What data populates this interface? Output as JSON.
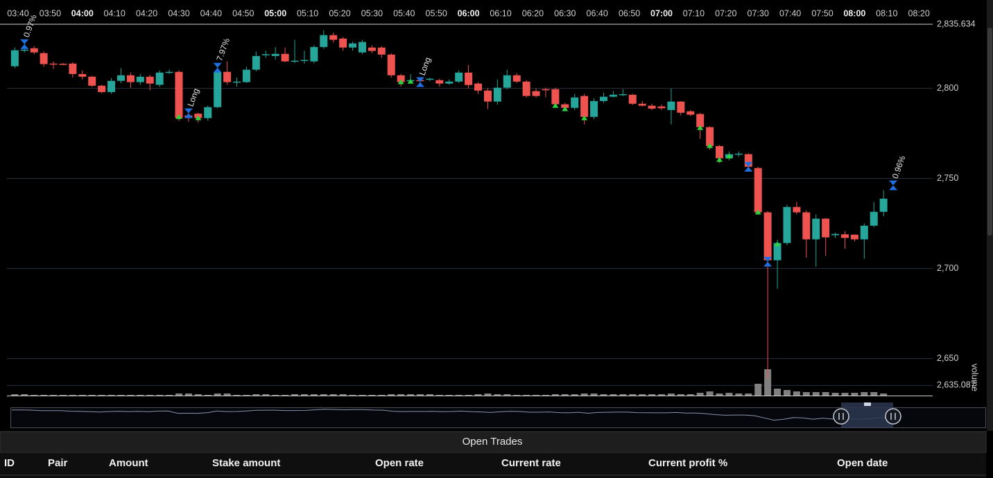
{
  "chart_data": {
    "type": "candlestick",
    "xticks": [
      "03:40",
      "03:50",
      "04:00",
      "04:10",
      "04:20",
      "04:30",
      "04:40",
      "04:50",
      "05:00",
      "05:10",
      "05:20",
      "05:30",
      "05:40",
      "05:50",
      "06:00",
      "06:10",
      "06:20",
      "06:30",
      "06:40",
      "06:50",
      "07:00",
      "07:10",
      "07:20",
      "07:30",
      "07:40",
      "07:50",
      "08:00",
      "08:10",
      "08:20"
    ],
    "x": [
      "03:39",
      "03:42",
      "03:45",
      "03:48",
      "03:51",
      "03:54",
      "03:57",
      "04:00",
      "04:03",
      "04:06",
      "04:09",
      "04:12",
      "04:15",
      "04:18",
      "04:21",
      "04:24",
      "04:27",
      "04:30",
      "04:33",
      "04:36",
      "04:39",
      "04:42",
      "04:45",
      "04:48",
      "04:51",
      "04:54",
      "04:57",
      "05:00",
      "05:03",
      "05:06",
      "05:09",
      "05:12",
      "05:15",
      "05:18",
      "05:21",
      "05:24",
      "05:27",
      "05:30",
      "05:33",
      "05:36",
      "05:39",
      "05:42",
      "05:45",
      "05:48",
      "05:51",
      "05:54",
      "05:57",
      "06:00",
      "06:03",
      "06:06",
      "06:09",
      "06:12",
      "06:15",
      "06:18",
      "06:21",
      "06:24",
      "06:27",
      "06:30",
      "06:33",
      "06:36",
      "06:39",
      "06:42",
      "06:45",
      "06:48",
      "06:51",
      "06:54",
      "06:57",
      "07:00",
      "07:03",
      "07:06",
      "07:09",
      "07:12",
      "07:15",
      "07:18",
      "07:21",
      "07:24",
      "07:27",
      "07:30",
      "07:33",
      "07:36",
      "07:39",
      "07:42",
      "07:45",
      "07:48",
      "07:51",
      "07:54",
      "07:57",
      "08:00",
      "08:03",
      "08:06",
      "08:09"
    ],
    "open": [
      2812.3,
      2821,
      2822.3,
      2819.6,
      2813.8,
      2813.7,
      2813.8,
      2808,
      2806.5,
      2801.5,
      2798,
      2804.2,
      2807.3,
      2803.5,
      2806.5,
      2802,
      2809,
      2809.2,
      2785,
      2786,
      2783.5,
      2789.6,
      2809.2,
      2803.5,
      2803.5,
      2810.4,
      2818.5,
      2818,
      2819.2,
      2815,
      2815.4,
      2815,
      2823,
      2829.6,
      2827.7,
      2822.7,
      2820,
      2822.7,
      2822.7,
      2818.8,
      2807.3,
      2804,
      2804.6,
      2805,
      2804.6,
      2802.7,
      2803.8,
      2808.8,
      2802.7,
      2798.8,
      2792.7,
      2800.4,
      2807.3,
      2803.8,
      2798.5,
      2799.6,
      2799.6,
      2791.2,
      2789.2,
      2795.8,
      2784.2,
      2793,
      2795.4,
      2796.5,
      2796.5,
      2791.5,
      2790.4,
      2790,
      2788,
      2792.7,
      2787.3,
      2785.8,
      2778.5,
      2768,
      2761.2,
      2763.5,
      2763.5,
      2755.8,
      2731.2,
      2704.6,
      2714.2,
      2734.2,
      2731.2,
      2716.2,
      2727.7,
      2718.5,
      2719,
      2718.8,
      2716.2,
      2723.8,
      2731.5
    ],
    "high": [
      2822.7,
      2825.8,
      2823.5,
      2820.5,
      2815,
      2814.2,
      2814.6,
      2810,
      2807,
      2802,
      2805.8,
      2811.2,
      2808.8,
      2808,
      2807.6,
      2810,
      2810.5,
      2810,
      2787,
      2786.5,
      2790.5,
      2812,
      2815,
      2806,
      2812,
      2820.5,
      2821,
      2823,
      2822.7,
      2827,
      2821,
      2824,
      2832.3,
      2831,
      2828.5,
      2826,
      2827,
      2824,
      2823.5,
      2819.5,
      2808,
      2808,
      2806,
      2806,
      2805.4,
      2805,
      2810,
      2813,
      2803.5,
      2800,
      2805,
      2810.4,
      2808.5,
      2804.6,
      2800,
      2800.4,
      2800.4,
      2792,
      2797,
      2797,
      2794.6,
      2797.7,
      2798.5,
      2799.6,
      2797,
      2793,
      2791.5,
      2791,
      2800,
      2793,
      2788,
      2786.5,
      2779,
      2768.5,
      2765,
      2765,
      2764,
      2756.5,
      2732,
      2716,
      2735.5,
      2737,
      2732.3,
      2730,
      2728,
      2720,
      2720.8,
      2719,
      2725,
      2737,
      2743.5
    ],
    "low": [
      2811.2,
      2820,
      2819,
      2812,
      2810.8,
      2813,
      2806,
      2805,
      2800.8,
      2797.3,
      2797,
      2803,
      2800.4,
      2802,
      2799,
      2800.8,
      2808,
      2782,
      2781.5,
      2781,
      2782,
      2789,
      2802,
      2801,
      2803,
      2809.5,
      2817,
      2816,
      2814.6,
      2814,
      2813.8,
      2814,
      2822,
      2825.4,
      2821,
      2821,
      2819,
      2819.6,
      2817,
      2806,
      2801,
      2803,
      2802,
      2804,
      2801,
      2802,
      2803,
      2800,
      2797,
      2788.5,
      2791,
      2799.6,
      2803,
      2795,
      2795,
      2795,
      2789.6,
      2788,
      2788,
      2780,
      2783,
      2792,
      2795,
      2795.8,
      2790.8,
      2790,
      2788,
      2788,
      2780,
      2785,
      2784.6,
      2772,
      2766,
      2758.5,
      2760,
      2762,
      2754,
      2730,
      2638.8,
      2688.8,
      2713,
      2730,
      2706,
      2701,
      2707,
      2717,
      2711,
      2715,
      2705.4,
      2723,
      2729
    ],
    "close": [
      2821.2,
      2821.5,
      2820,
      2813.5,
      2813.5,
      2813.5,
      2808,
      2806.5,
      2801.5,
      2798,
      2804.2,
      2807.3,
      2803.5,
      2806.5,
      2802.7,
      2808.8,
      2809.2,
      2783.5,
      2784,
      2783.5,
      2789.6,
      2809.2,
      2803.5,
      2803.8,
      2810.4,
      2818,
      2819,
      2819.2,
      2815,
      2815.4,
      2815.8,
      2823,
      2829.6,
      2827,
      2822.7,
      2825,
      2825.8,
      2820.8,
      2818.8,
      2807.3,
      2803.5,
      2804.6,
      2804.2,
      2805.4,
      2802.7,
      2803.8,
      2808.8,
      2801.9,
      2798.8,
      2792.7,
      2800.4,
      2807.3,
      2803.8,
      2795.8,
      2795.8,
      2799,
      2791.2,
      2789.2,
      2795,
      2784.2,
      2793,
      2795.4,
      2796.5,
      2796.8,
      2791.5,
      2790.4,
      2788.8,
      2789,
      2792.7,
      2786.5,
      2785.4,
      2778.5,
      2768,
      2761.2,
      2763.5,
      2763.8,
      2756.5,
      2731.2,
      2704.6,
      2714.2,
      2734.2,
      2731.2,
      2716.2,
      2727.7,
      2717.3,
      2719.2,
      2717,
      2716.2,
      2723.8,
      2731.5,
      2738.8
    ],
    "volume": [
      2,
      2,
      1,
      1,
      1,
      1,
      1,
      1,
      1,
      1,
      1,
      1,
      1,
      1,
      1,
      1,
      1,
      3,
      3,
      2,
      1,
      3,
      3,
      1,
      1,
      2,
      2,
      1,
      1,
      2,
      2,
      2,
      2,
      2,
      2,
      1,
      1,
      1,
      1,
      2,
      2,
      2,
      2,
      2,
      1,
      1,
      1,
      1,
      2,
      3,
      2,
      2,
      1,
      1,
      1,
      1,
      2,
      2,
      2,
      3,
      3,
      2,
      2,
      2,
      2,
      2,
      2,
      2,
      3,
      2,
      2,
      4,
      6,
      3,
      4,
      3,
      3,
      17,
      38,
      10,
      8,
      6,
      5,
      5,
      5,
      4,
      4,
      4,
      5,
      5,
      3
    ],
    "ylim": [
      2629.48,
      2835.634
    ],
    "yticks": [
      {
        "value": 2835.634,
        "label": "2,835.634"
      },
      {
        "value": 2800,
        "label": "2,800"
      },
      {
        "value": 2750,
        "label": "2,750"
      },
      {
        "value": 2700,
        "label": "2,700"
      },
      {
        "value": 2650,
        "label": "2,650"
      },
      {
        "value": 2635.087,
        "label": "2,635.087"
      }
    ],
    "volume_label": "volume",
    "grid": true,
    "up_color": "#26a69a",
    "down_color": "#ef5350",
    "volume_color": "#808080",
    "signal_color": "#2ed23e",
    "trade_color": "#1f6fe0",
    "signals": [
      {
        "time": "04:30",
        "price": 2784.2
      },
      {
        "time": "04:36",
        "price": 2783.5
      },
      {
        "time": "05:39",
        "price": 2803.5
      },
      {
        "time": "05:42",
        "price": 2803.8
      },
      {
        "time": "06:27",
        "price": 2790.4
      },
      {
        "time": "06:30",
        "price": 2788.5
      },
      {
        "time": "06:36",
        "price": 2783.5
      },
      {
        "time": "07:12",
        "price": 2778.1
      },
      {
        "time": "07:15",
        "price": 2768.1
      },
      {
        "time": "07:18",
        "price": 2760.4
      },
      {
        "time": "07:21",
        "price": 2762.3
      },
      {
        "time": "07:30",
        "price": 2731.2
      },
      {
        "time": "07:36",
        "price": 2713.5
      }
    ],
    "trades": [
      {
        "time": "03:42",
        "price": 2824.6,
        "label": "0.97%"
      },
      {
        "time": "04:33",
        "price": 2786.2,
        "label": "Long"
      },
      {
        "time": "04:42",
        "price": 2811.5,
        "label": "7.97%"
      },
      {
        "time": "05:45",
        "price": 2803.5,
        "label": "Long"
      },
      {
        "time": "07:27",
        "price": 2756.5
      },
      {
        "time": "07:33",
        "price": 2703.8
      },
      {
        "time": "08:12",
        "price": 2746.2,
        "label": "0.96%"
      }
    ]
  },
  "table": {
    "title": "Open Trades",
    "columns": [
      "ID",
      "Pair",
      "Amount",
      "Stake amount",
      "Open rate",
      "Current rate",
      "Current profit %",
      "Open date"
    ]
  }
}
